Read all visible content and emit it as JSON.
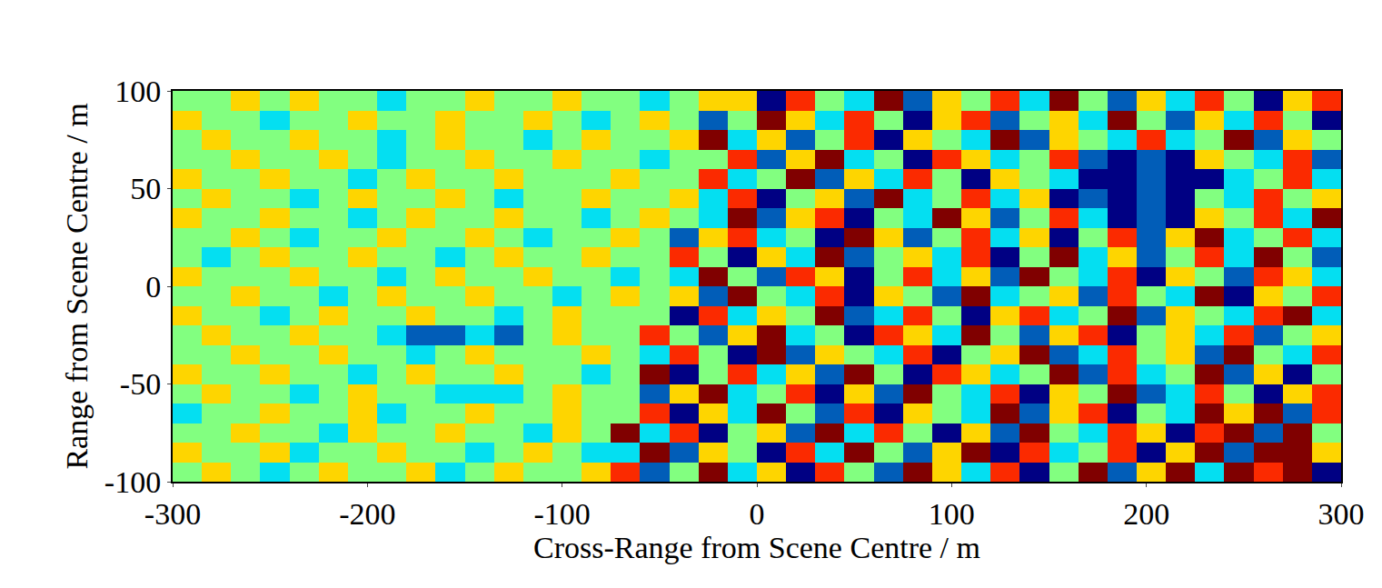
{
  "chart_data": {
    "type": "heatmap",
    "x_label": "Cross-Range from Scene Centre / m",
    "y_label": "Range from Scene Centre / m",
    "x": [
      -292.5,
      -277.5,
      -262.5,
      -247.5,
      -232.5,
      -217.5,
      -202.5,
      -187.5,
      -172.5,
      -157.5,
      -142.5,
      -127.5,
      -112.5,
      -97.5,
      -82.5,
      -67.5,
      -52.5,
      -37.5,
      -22.5,
      -7.5,
      7.5,
      22.5,
      37.5,
      52.5,
      67.5,
      82.5,
      97.5,
      112.5,
      127.5,
      142.5,
      157.5,
      172.5,
      187.5,
      202.5,
      217.5,
      232.5,
      247.5,
      262.5,
      277.5,
      292.5
    ],
    "y": [
      -95,
      -85,
      -75,
      -65,
      -55,
      -45,
      -35,
      -25,
      -15,
      -5,
      5,
      15,
      25,
      35,
      45,
      55,
      65,
      75,
      85,
      95
    ],
    "cells": [
      [
        0,
        1,
        0,
        -1,
        0,
        1,
        0,
        0,
        1,
        -1,
        0,
        1,
        0,
        0,
        1,
        2,
        -2,
        0,
        3,
        -1,
        1,
        -3,
        2,
        0,
        -2,
        3,
        1,
        -1,
        2,
        -3,
        0,
        3,
        -2,
        1,
        3,
        -1,
        3,
        2,
        3,
        -3
      ],
      [
        1,
        0,
        0,
        1,
        -1,
        0,
        0,
        1,
        0,
        0,
        -1,
        0,
        1,
        0,
        -1,
        -1,
        3,
        -2,
        1,
        0,
        -3,
        2,
        -1,
        3,
        0,
        -2,
        1,
        3,
        -3,
        2,
        -1,
        0,
        2,
        -3,
        1,
        3,
        -2,
        3,
        3,
        1
      ],
      [
        0,
        0,
        1,
        0,
        0,
        -1,
        1,
        0,
        0,
        1,
        0,
        0,
        -1,
        1,
        0,
        3,
        -1,
        2,
        -3,
        0,
        1,
        -2,
        3,
        -1,
        2,
        0,
        -3,
        1,
        -2,
        3,
        0,
        -1,
        2,
        1,
        -3,
        2,
        3,
        -2,
        3,
        0
      ],
      [
        -1,
        0,
        0,
        1,
        0,
        0,
        1,
        -1,
        0,
        0,
        1,
        0,
        0,
        1,
        0,
        0,
        2,
        -3,
        1,
        -1,
        3,
        0,
        -2,
        2,
        -3,
        1,
        0,
        -1,
        3,
        -2,
        1,
        2,
        -3,
        0,
        -1,
        3,
        1,
        3,
        -2,
        2
      ],
      [
        0,
        1,
        0,
        0,
        -1,
        0,
        1,
        0,
        0,
        -1,
        -1,
        -1,
        0,
        1,
        0,
        0,
        -2,
        1,
        3,
        -1,
        0,
        2,
        -3,
        1,
        -2,
        3,
        0,
        -1,
        2,
        -3,
        1,
        0,
        3,
        -2,
        -1,
        2,
        0,
        -3,
        1,
        2
      ],
      [
        1,
        0,
        0,
        1,
        0,
        0,
        -1,
        0,
        1,
        0,
        0,
        1,
        0,
        0,
        -1,
        0,
        3,
        -3,
        0,
        2,
        -1,
        1,
        -2,
        3,
        0,
        -3,
        2,
        1,
        -1,
        0,
        3,
        -2,
        2,
        -1,
        0,
        3,
        -2,
        1,
        -3,
        0
      ],
      [
        0,
        0,
        1,
        0,
        0,
        1,
        0,
        0,
        -1,
        0,
        1,
        0,
        0,
        0,
        1,
        0,
        -1,
        2,
        0,
        -3,
        3,
        -2,
        1,
        0,
        -1,
        2,
        -3,
        0,
        1,
        3,
        -2,
        -1,
        2,
        0,
        1,
        -2,
        3,
        0,
        -1,
        2
      ],
      [
        0,
        1,
        0,
        0,
        1,
        0,
        0,
        -1,
        -2,
        -2,
        -1,
        -2,
        0,
        1,
        0,
        0,
        2,
        0,
        -2,
        1,
        3,
        -1,
        0,
        -3,
        2,
        1,
        -1,
        3,
        0,
        -2,
        1,
        2,
        -3,
        0,
        1,
        -1,
        2,
        -2,
        0,
        1
      ],
      [
        1,
        0,
        0,
        -1,
        0,
        1,
        0,
        0,
        1,
        0,
        0,
        -1,
        0,
        1,
        0,
        0,
        0,
        -3,
        2,
        -1,
        1,
        0,
        3,
        -2,
        -1,
        2,
        0,
        -3,
        1,
        2,
        -1,
        0,
        3,
        -2,
        1,
        0,
        -1,
        2,
        3,
        -1
      ],
      [
        0,
        0,
        1,
        0,
        0,
        -1,
        0,
        1,
        0,
        0,
        1,
        0,
        0,
        -1,
        0,
        1,
        0,
        1,
        -2,
        3,
        0,
        -1,
        2,
        -3,
        1,
        0,
        -2,
        3,
        -1,
        0,
        1,
        -2,
        2,
        0,
        -1,
        3,
        -3,
        1,
        0,
        2
      ],
      [
        1,
        0,
        0,
        0,
        1,
        0,
        0,
        -1,
        0,
        1,
        0,
        0,
        1,
        0,
        0,
        -1,
        0,
        -1,
        3,
        0,
        -2,
        2,
        1,
        -3,
        0,
        2,
        -1,
        1,
        -2,
        3,
        0,
        -1,
        2,
        -3,
        1,
        0,
        -2,
        2,
        1,
        -1
      ],
      [
        0,
        -1,
        0,
        1,
        0,
        0,
        1,
        0,
        0,
        -1,
        0,
        1,
        0,
        0,
        1,
        0,
        0,
        2,
        0,
        -3,
        1,
        -1,
        3,
        -2,
        0,
        1,
        -1,
        2,
        -3,
        0,
        3,
        -1,
        1,
        -2,
        0,
        2,
        -1,
        3,
        0,
        -2
      ],
      [
        0,
        0,
        1,
        0,
        -1,
        0,
        0,
        1,
        0,
        0,
        1,
        0,
        -1,
        0,
        0,
        1,
        0,
        -2,
        1,
        2,
        -1,
        0,
        -3,
        3,
        1,
        -2,
        0,
        2,
        -1,
        1,
        -3,
        0,
        2,
        -2,
        1,
        3,
        -1,
        0,
        2,
        -1
      ],
      [
        1,
        0,
        0,
        1,
        0,
        0,
        -1,
        0,
        1,
        0,
        0,
        1,
        0,
        0,
        -1,
        0,
        1,
        0,
        -1,
        3,
        -2,
        1,
        2,
        -3,
        0,
        -1,
        3,
        1,
        -2,
        0,
        2,
        -1,
        -3,
        -2,
        -3,
        1,
        0,
        2,
        -1,
        3
      ],
      [
        0,
        1,
        0,
        0,
        -1,
        0,
        1,
        0,
        0,
        1,
        0,
        -1,
        0,
        0,
        1,
        0,
        0,
        1,
        -1,
        2,
        -3,
        0,
        1,
        -2,
        3,
        -1,
        0,
        2,
        -1,
        1,
        -3,
        -2,
        -3,
        -2,
        -3,
        0,
        -1,
        2,
        0,
        1
      ],
      [
        1,
        0,
        0,
        1,
        0,
        0,
        -1,
        0,
        1,
        0,
        0,
        1,
        0,
        0,
        0,
        1,
        0,
        0,
        2,
        -1,
        0,
        3,
        -2,
        1,
        -1,
        2,
        0,
        -3,
        1,
        0,
        -1,
        -3,
        -3,
        -2,
        -3,
        -3,
        -1,
        0,
        2,
        -1
      ],
      [
        0,
        0,
        1,
        0,
        0,
        1,
        0,
        -1,
        0,
        0,
        1,
        0,
        0,
        1,
        0,
        0,
        -1,
        0,
        0,
        2,
        -2,
        1,
        3,
        -1,
        0,
        -3,
        2,
        1,
        -1,
        0,
        2,
        -2,
        -3,
        -2,
        -3,
        1,
        0,
        -1,
        2,
        -2
      ],
      [
        0,
        1,
        0,
        0,
        1,
        0,
        0,
        -1,
        0,
        1,
        0,
        0,
        -1,
        0,
        1,
        0,
        0,
        1,
        3,
        -1,
        1,
        -2,
        0,
        2,
        -3,
        1,
        0,
        -1,
        3,
        -2,
        1,
        0,
        -1,
        2,
        -1,
        0,
        3,
        -2,
        1,
        0
      ],
      [
        1,
        0,
        0,
        -1,
        0,
        0,
        1,
        0,
        0,
        1,
        0,
        0,
        1,
        0,
        -1,
        0,
        1,
        0,
        -2,
        0,
        3,
        1,
        -1,
        2,
        0,
        -3,
        1,
        2,
        -2,
        0,
        1,
        -1,
        3,
        0,
        -2,
        1,
        -1,
        2,
        0,
        -3
      ],
      [
        0,
        0,
        1,
        0,
        1,
        0,
        0,
        -1,
        0,
        0,
        1,
        0,
        0,
        1,
        0,
        0,
        -1,
        0,
        1,
        1,
        -3,
        2,
        0,
        -1,
        3,
        -2,
        1,
        0,
        2,
        -1,
        3,
        0,
        -2,
        1,
        -1,
        2,
        0,
        -3,
        1,
        2
      ]
    ],
    "xlim": [
      -300,
      300
    ],
    "ylim": [
      -100,
      100
    ],
    "xticks": [
      -300,
      -200,
      -100,
      0,
      100,
      200,
      300
    ],
    "yticks": [
      -100,
      -50,
      0,
      50,
      100
    ],
    "grid": false
  }
}
